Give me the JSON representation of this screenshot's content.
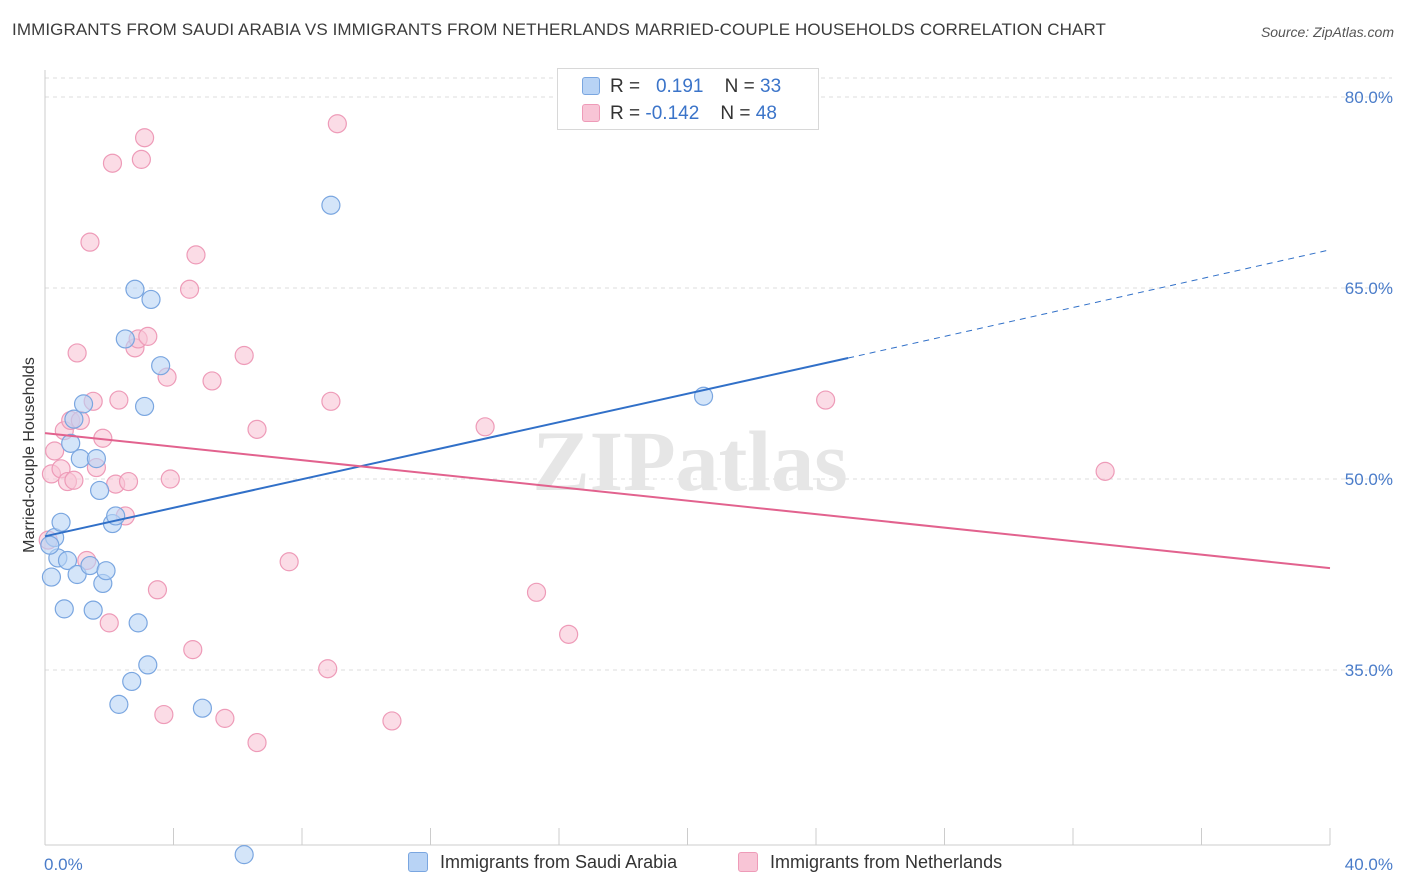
{
  "header": {
    "title": "IMMIGRANTS FROM SAUDI ARABIA VS IMMIGRANTS FROM NETHERLANDS MARRIED-COUPLE HOUSEHOLDS CORRELATION CHART",
    "source": "Source: ZipAtlas.com"
  },
  "colors": {
    "blue_fill": "#b8d3f5",
    "blue_stroke": "#7aa6e0",
    "blue_line": "#3170c8",
    "pink_fill": "#f8c5d6",
    "pink_stroke": "#ee9bb8",
    "pink_line": "#e2628e",
    "tick_text": "#4a7cc9",
    "grid": "#dddddd"
  },
  "legend": {
    "r_label": "R =",
    "n_label": "N =",
    "series1_r": "0.191",
    "series1_n": "33",
    "series2_r": "-0.142",
    "series2_n": "48"
  },
  "chart_data": {
    "type": "scatter",
    "title": "IMMIGRANTS FROM SAUDI ARABIA VS IMMIGRANTS FROM NETHERLANDS MARRIED-COUPLE HOUSEHOLDS CORRELATION CHART",
    "xlabel": "",
    "ylabel": "Married-couple Households",
    "xlim": [
      0,
      40
    ],
    "ylim": [
      20,
      83
    ],
    "x_tick_labels": [
      "0.0%",
      "40.0%"
    ],
    "y_ticks": [
      35,
      50,
      65,
      80
    ],
    "y_tick_labels": [
      "35.0%",
      "50.0%",
      "65.0%",
      "80.0%"
    ],
    "watermark": "ZIPatlas",
    "series": [
      {
        "name": "Immigrants from Saudi Arabia",
        "color": "#b8d3f5",
        "r": 0.191,
        "n": 33,
        "trend": {
          "x0": 0,
          "y0": 45.5,
          "x1": 25,
          "y1": 59.5,
          "dash_x1": 40,
          "dash_y1": 68.0
        },
        "points": [
          [
            0.2,
            42.3
          ],
          [
            0.3,
            45.4
          ],
          [
            0.4,
            43.8
          ],
          [
            0.5,
            46.6
          ],
          [
            0.6,
            39.8
          ],
          [
            0.7,
            43.6
          ],
          [
            0.8,
            52.8
          ],
          [
            0.9,
            54.7
          ],
          [
            1.0,
            42.5
          ],
          [
            1.1,
            51.6
          ],
          [
            1.2,
            55.9
          ],
          [
            1.4,
            43.2
          ],
          [
            1.5,
            39.7
          ],
          [
            1.6,
            51.6
          ],
          [
            1.7,
            49.1
          ],
          [
            1.8,
            41.8
          ],
          [
            1.9,
            42.8
          ],
          [
            2.1,
            46.5
          ],
          [
            2.2,
            47.1
          ],
          [
            2.3,
            32.3
          ],
          [
            2.5,
            61.0
          ],
          [
            2.7,
            34.1
          ],
          [
            2.8,
            64.9
          ],
          [
            2.9,
            38.7
          ],
          [
            3.1,
            55.7
          ],
          [
            3.2,
            35.4
          ],
          [
            3.3,
            64.1
          ],
          [
            3.6,
            58.9
          ],
          [
            4.9,
            32.0
          ],
          [
            6.2,
            20.5
          ],
          [
            8.9,
            71.5
          ],
          [
            20.5,
            56.5
          ],
          [
            0.15,
            44.8
          ]
        ]
      },
      {
        "name": "Immigrants from Netherlands",
        "color": "#f8c5d6",
        "r": -0.142,
        "n": 48,
        "trend": {
          "x0": 0,
          "y0": 53.6,
          "x1": 40,
          "y1": 43.0
        },
        "points": [
          [
            0.1,
            45.2
          ],
          [
            0.2,
            50.4
          ],
          [
            0.3,
            52.2
          ],
          [
            0.5,
            50.8
          ],
          [
            0.6,
            53.8
          ],
          [
            0.7,
            49.8
          ],
          [
            0.8,
            54.6
          ],
          [
            0.9,
            49.9
          ],
          [
            1.0,
            59.9
          ],
          [
            1.1,
            54.6
          ],
          [
            1.3,
            43.6
          ],
          [
            1.4,
            68.6
          ],
          [
            1.5,
            56.1
          ],
          [
            1.6,
            50.9
          ],
          [
            1.8,
            53.2
          ],
          [
            2.0,
            38.7
          ],
          [
            2.1,
            74.8
          ],
          [
            2.2,
            49.6
          ],
          [
            2.3,
            56.2
          ],
          [
            2.5,
            47.1
          ],
          [
            2.6,
            49.8
          ],
          [
            2.8,
            60.3
          ],
          [
            2.9,
            61.0
          ],
          [
            3.0,
            75.1
          ],
          [
            3.1,
            76.8
          ],
          [
            3.2,
            61.2
          ],
          [
            3.5,
            41.3
          ],
          [
            3.7,
            31.5
          ],
          [
            3.8,
            58.0
          ],
          [
            3.9,
            50.0
          ],
          [
            4.5,
            64.9
          ],
          [
            4.6,
            36.6
          ],
          [
            4.7,
            67.6
          ],
          [
            5.2,
            57.7
          ],
          [
            5.6,
            31.2
          ],
          [
            6.2,
            59.7
          ],
          [
            6.6,
            53.9
          ],
          [
            6.6,
            29.3
          ],
          [
            7.6,
            43.5
          ],
          [
            8.8,
            35.1
          ],
          [
            8.9,
            56.1
          ],
          [
            9.1,
            77.9
          ],
          [
            10.8,
            31.0
          ],
          [
            13.7,
            54.1
          ],
          [
            15.3,
            41.1
          ],
          [
            16.3,
            37.8
          ],
          [
            24.3,
            56.2
          ],
          [
            33.0,
            50.6
          ]
        ]
      }
    ]
  }
}
